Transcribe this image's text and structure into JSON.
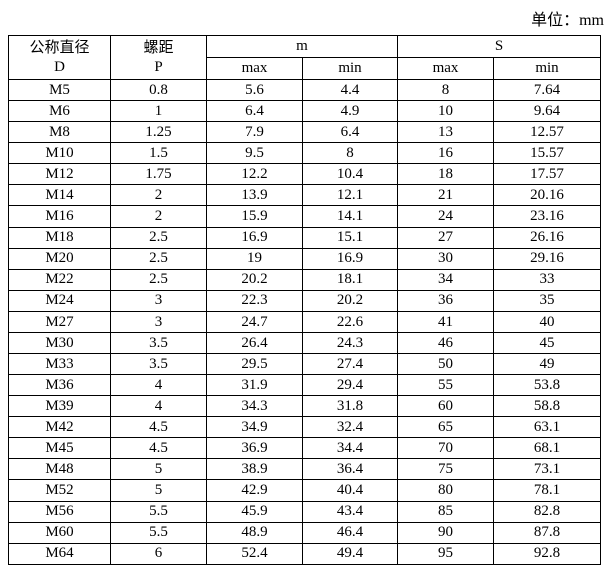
{
  "unit_label": "单位：mm",
  "table": {
    "header": {
      "d_name": "公称直径",
      "d_symbol": "D",
      "p_name": "螺距",
      "p_symbol": "P",
      "m_group": "m",
      "s_group": "S",
      "m_max": "max",
      "m_min": "min",
      "s_max": "max",
      "s_min": "min"
    },
    "columns": [
      "d",
      "p",
      "m-max",
      "m-min",
      "s-max",
      "s-min"
    ],
    "rows": [
      [
        "M5",
        "0.8",
        "5.6",
        "4.4",
        "8",
        "7.64"
      ],
      [
        "M6",
        "1",
        "6.4",
        "4.9",
        "10",
        "9.64"
      ],
      [
        "M8",
        "1.25",
        "7.9",
        "6.4",
        "13",
        "12.57"
      ],
      [
        "M10",
        "1.5",
        "9.5",
        "8",
        "16",
        "15.57"
      ],
      [
        "M12",
        "1.75",
        "12.2",
        "10.4",
        "18",
        "17.57"
      ],
      [
        "M14",
        "2",
        "13.9",
        "12.1",
        "21",
        "20.16"
      ],
      [
        "M16",
        "2",
        "15.9",
        "14.1",
        "24",
        "23.16"
      ],
      [
        "M18",
        "2.5",
        "16.9",
        "15.1",
        "27",
        "26.16"
      ],
      [
        "M20",
        "2.5",
        "19",
        "16.9",
        "30",
        "29.16"
      ],
      [
        "M22",
        "2.5",
        "20.2",
        "18.1",
        "34",
        "33"
      ],
      [
        "M24",
        "3",
        "22.3",
        "20.2",
        "36",
        "35"
      ],
      [
        "M27",
        "3",
        "24.7",
        "22.6",
        "41",
        "40"
      ],
      [
        "M30",
        "3.5",
        "26.4",
        "24.3",
        "46",
        "45"
      ],
      [
        "M33",
        "3.5",
        "29.5",
        "27.4",
        "50",
        "49"
      ],
      [
        "M36",
        "4",
        "31.9",
        "29.4",
        "55",
        "53.8"
      ],
      [
        "M39",
        "4",
        "34.3",
        "31.8",
        "60",
        "58.8"
      ],
      [
        "M42",
        "4.5",
        "34.9",
        "32.4",
        "65",
        "63.1"
      ],
      [
        "M45",
        "4.5",
        "36.9",
        "34.4",
        "70",
        "68.1"
      ],
      [
        "M48",
        "5",
        "38.9",
        "36.4",
        "75",
        "73.1"
      ],
      [
        "M52",
        "5",
        "42.9",
        "40.4",
        "80",
        "78.1"
      ],
      [
        "M56",
        "5.5",
        "45.9",
        "43.4",
        "85",
        "82.8"
      ],
      [
        "M60",
        "5.5",
        "48.9",
        "46.4",
        "90",
        "87.8"
      ],
      [
        "M64",
        "6",
        "52.4",
        "49.4",
        "95",
        "92.8"
      ]
    ]
  }
}
